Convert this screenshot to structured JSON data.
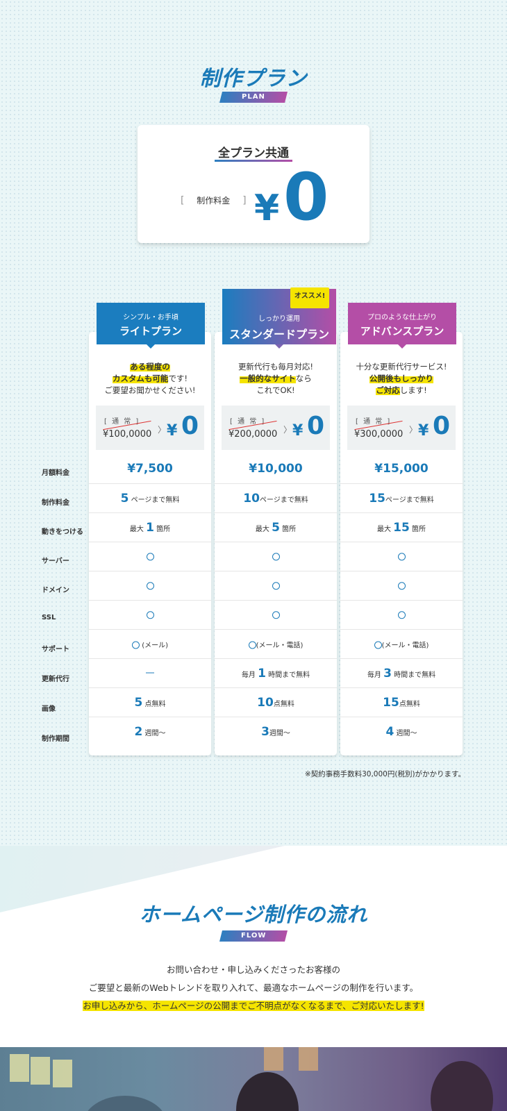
{
  "plan_section": {
    "title": "制作プラン",
    "tag": "PLAN",
    "common_card": {
      "title": "全プラン共通",
      "label_open": "[",
      "label": "制作料金",
      "label_close": "]",
      "yen": "¥",
      "value": "0"
    },
    "recommend_badge": "オススメ!",
    "row_labels": [
      "月額料金",
      "制作料金",
      "動きをつける",
      "サーバー",
      "ドメイン",
      "SSL",
      "サポート",
      "更新代行",
      "画像",
      "制作期間"
    ],
    "plans": [
      {
        "sub": "シンプル・お手頃",
        "name": "ライトプラン",
        "color": "#1b7dbf",
        "desc": {
          "l1_hl": "ある程度の",
          "l2_hl": "カスタムも可能",
          "l2": "です!",
          "l3": "ご要望お聞かせください!"
        },
        "normal_label": "[ 通 常 ]",
        "normal_price": "¥100,0000",
        "arrow": "〉",
        "free_yen": "¥",
        "free_value": "0",
        "monthly": "¥7,500",
        "pages_num": "5",
        "pages_text": "ページまで無料",
        "motion_pre": "最大",
        "motion_num": "1",
        "motion_post": "箇所",
        "support": "(メール)",
        "update_dash": true,
        "update_pre": "",
        "update_num": "",
        "update_post": "",
        "images_num": "5",
        "images_text": "点無料",
        "period_num": "2",
        "period_text": "週間〜"
      },
      {
        "sub": "しっかり運用",
        "name": "スタンダードプラン",
        "color": "#5e75b8",
        "desc": {
          "l1": "更新代行も毎月対応!",
          "l2_hl": "一般的なサイト",
          "l2": "なら",
          "l3": "これでOK!"
        },
        "normal_label": "[ 通 常 ]",
        "normal_price": "¥200,0000",
        "arrow": "〉",
        "free_yen": "¥",
        "free_value": "0",
        "monthly": "¥10,000",
        "pages_num": "10",
        "pages_text": "ページまで無料",
        "motion_pre": "最大",
        "motion_num": "5",
        "motion_post": "箇所",
        "support": "(メール・電話)",
        "update_dash": false,
        "update_pre": "毎月",
        "update_num": "1",
        "update_post": "時間まで無料",
        "images_num": "10",
        "images_text": "点無料",
        "period_num": "3",
        "period_text": "週間〜"
      },
      {
        "sub": "プロのような仕上がり",
        "name": "アドバンスプラン",
        "color": "#b44ea6",
        "desc": {
          "l1": "十分な更新代行サービス!",
          "l2_hl": "公開後もしっかり",
          "l3_hl": "ご対応",
          "l3": "します!"
        },
        "normal_label": "[ 通 常 ]",
        "normal_price": "¥300,0000",
        "arrow": "〉",
        "free_yen": "¥",
        "free_value": "0",
        "monthly": "¥15,000",
        "pages_num": "15",
        "pages_text": "ページまで無料",
        "motion_pre": "最大",
        "motion_num": "15",
        "motion_post": "箇所",
        "support": "(メール・電話)",
        "update_dash": false,
        "update_pre": "毎月",
        "update_num": "3",
        "update_post": "時間まで無料",
        "images_num": "15",
        "images_text": "点無料",
        "period_num": "4",
        "period_text": "週間〜"
      }
    ],
    "fee_note": "※契約事務手数料30,000円(税別)がかかります。"
  },
  "flow_section": {
    "title": "ホームページ制作の流れ",
    "tag": "FLOW",
    "line1": "お問い合わせ・申し込みくださったお客様の",
    "line2": "ご要望と最新のWebトレンドを取り入れて、最適なホームページの制作を行います。",
    "line3": "お申し込みから、ホームページの公開までご不明点がなくなるまで、ご対応いたします!"
  }
}
